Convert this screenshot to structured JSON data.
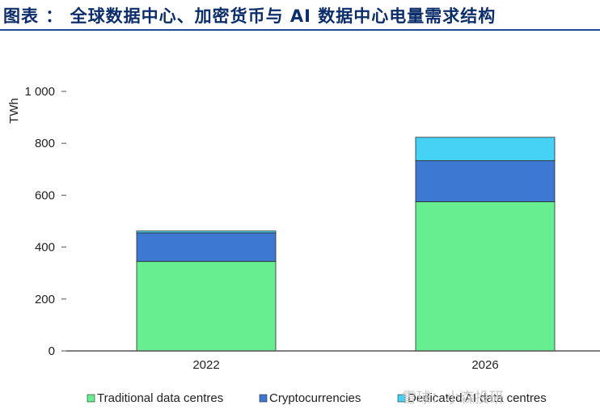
{
  "header": {
    "title": "图表    ：  全球数据中心、加密货币与 AI 数据中心电量需求结构"
  },
  "colors": {
    "traditional": "#66ee90",
    "crypto": "#3d78d3",
    "ai": "#46d2f5",
    "axis": "#555555",
    "title": "#0b2d6b"
  },
  "chart_data": {
    "type": "bar",
    "stacked": true,
    "categories": [
      "2022",
      "2026"
    ],
    "series": [
      {
        "name": "Traditional data centres",
        "values": [
          345,
          575
        ]
      },
      {
        "name": "Cryptocurrencies",
        "values": [
          110,
          158
        ]
      },
      {
        "name": "Dedicated AI data centres",
        "values": [
          7,
          90
        ]
      }
    ],
    "ylabel": "TWh",
    "ylim": [
      0,
      1000
    ],
    "yticks": [
      0,
      200,
      400,
      600,
      800,
      1000
    ],
    "ytick_labels": [
      "0",
      "200",
      "400",
      "600",
      "800",
      "1 000"
    ],
    "grid": false,
    "legend_position": "bottom"
  },
  "watermark": "雪球：小森投研"
}
